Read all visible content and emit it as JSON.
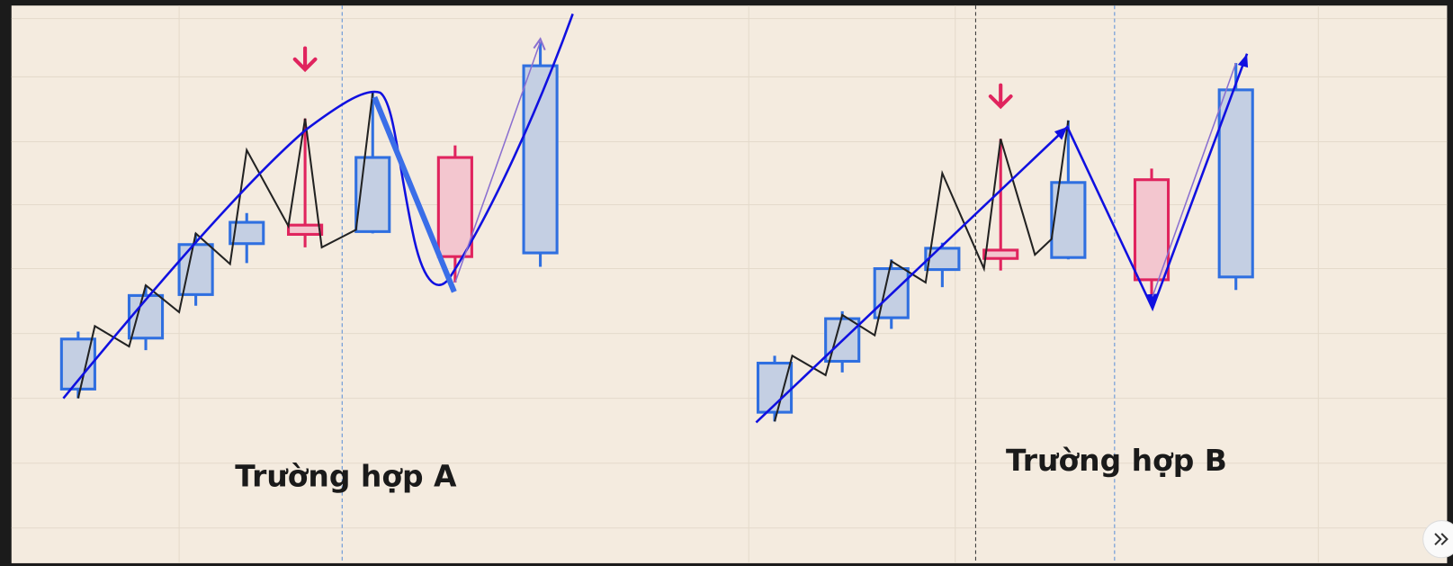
{
  "panels": [
    {
      "caption": "Trường hợp A"
    },
    {
      "caption": "Trường hợp B"
    }
  ]
}
